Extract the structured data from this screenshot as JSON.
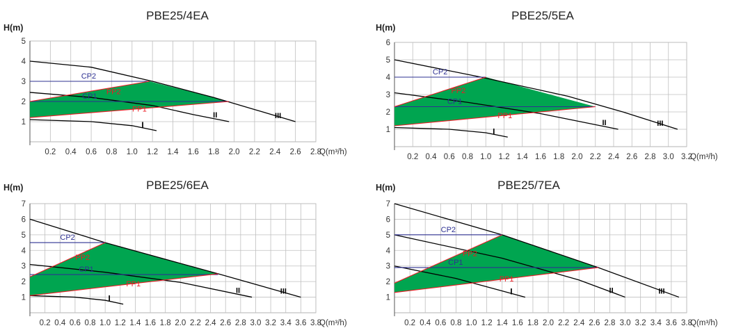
{
  "chart_data": [
    {
      "type": "line",
      "title": "PBE25/4EA",
      "ylabel": "H(m)",
      "xlabel": "Q(m³/h)",
      "ylim": [
        0,
        5
      ],
      "xlim": [
        0,
        2.8
      ],
      "yticks": [
        "1",
        "2",
        "3",
        "4",
        "5"
      ],
      "xticks": [
        "0.2",
        "0.4",
        "0.6",
        "0.8",
        "1.0",
        "1.2",
        "1.4",
        "1.6",
        "1.8",
        "2.0",
        "2.2",
        "2.4",
        "2.6",
        "2.8"
      ],
      "grid": true,
      "series": [
        {
          "name": "I",
          "x": [
            0,
            0.6,
            1.0,
            1.24
          ],
          "y": [
            1.1,
            1.0,
            0.8,
            0.55
          ]
        },
        {
          "name": "II",
          "x": [
            0,
            0.6,
            1.2,
            1.6,
            1.95
          ],
          "y": [
            2.45,
            2.2,
            1.8,
            1.35,
            1.0
          ]
        },
        {
          "name": "III",
          "x": [
            0,
            0.6,
            1.2,
            1.8,
            2.2,
            2.6
          ],
          "y": [
            4.0,
            3.7,
            3.0,
            2.2,
            1.6,
            1.0
          ]
        },
        {
          "name": "CP2",
          "x": [
            0,
            1.15
          ],
          "y": [
            3.0,
            3.0
          ]
        },
        {
          "name": "CP1",
          "x": [
            0,
            1.95
          ],
          "y": [
            2.0,
            2.0
          ]
        },
        {
          "name": "PP2",
          "x": [
            0,
            1.17
          ],
          "y": [
            2.0,
            3.0
          ]
        },
        {
          "name": "PP1",
          "x": [
            0,
            1.95
          ],
          "y": [
            1.2,
            2.0
          ]
        }
      ],
      "region": {
        "color": "#00A550",
        "x": [
          0,
          1.17,
          1.95,
          0
        ],
        "y": [
          2.0,
          3.0,
          2.0,
          1.2
        ]
      }
    },
    {
      "type": "line",
      "title": "PBE25/5EA",
      "ylabel": "H(m)",
      "xlabel": "Q(m³/h)",
      "ylim": [
        0,
        6
      ],
      "xlim": [
        0,
        3.2
      ],
      "yticks": [
        "1",
        "2",
        "3",
        "4",
        "5",
        "6"
      ],
      "xticks": [
        "0.2",
        "0.4",
        "0.6",
        "0.8",
        "1.0",
        "1.2",
        "1.4",
        "1.6",
        "1.8",
        "2.0",
        "2.2",
        "2.4",
        "2.6",
        "2.8",
        "3.0",
        "3.2"
      ],
      "grid": true,
      "series": [
        {
          "name": "I",
          "x": [
            0,
            0.6,
            1.0,
            1.24
          ],
          "y": [
            1.1,
            1.0,
            0.8,
            0.55
          ]
        },
        {
          "name": "II",
          "x": [
            0,
            0.8,
            1.6,
            2.45
          ],
          "y": [
            3.1,
            2.55,
            1.9,
            1.0
          ]
        },
        {
          "name": "III",
          "x": [
            0,
            0.95,
            1.9,
            2.5,
            3.1
          ],
          "y": [
            5.0,
            4.0,
            2.9,
            2.0,
            1.0
          ]
        },
        {
          "name": "CP2",
          "x": [
            0,
            1.0
          ],
          "y": [
            4.0,
            4.0
          ]
        },
        {
          "name": "CP1",
          "x": [
            0,
            2.2
          ],
          "y": [
            2.3,
            2.3
          ]
        },
        {
          "name": "PP2",
          "x": [
            0,
            1.0
          ],
          "y": [
            2.3,
            4.0
          ]
        },
        {
          "name": "PP1",
          "x": [
            0,
            2.2
          ],
          "y": [
            1.2,
            2.3
          ]
        }
      ],
      "region": {
        "color": "#00A550",
        "x": [
          0,
          1.0,
          2.2,
          0
        ],
        "y": [
          2.3,
          4.0,
          2.3,
          1.2
        ]
      }
    },
    {
      "type": "line",
      "title": "PBE25/6EA",
      "ylabel": "H(m)",
      "xlabel": "Q(m³/h)",
      "ylim": [
        0,
        7
      ],
      "xlim": [
        0,
        3.8
      ],
      "yticks": [
        "1",
        "2",
        "3",
        "4",
        "5",
        "6",
        "7"
      ],
      "xticks": [
        "0.2",
        "0.4",
        "0.6",
        "0.8",
        "1.0",
        "1.2",
        "1.4",
        "1.6",
        "1.8",
        "2.0",
        "2.2",
        "2.4",
        "2.6",
        "2.8",
        "3.0",
        "3.2",
        "3.4",
        "3.6",
        "3.8"
      ],
      "grid": true,
      "series": [
        {
          "name": "I",
          "x": [
            0,
            0.6,
            1.0,
            1.24
          ],
          "y": [
            1.1,
            1.0,
            0.8,
            0.55
          ]
        },
        {
          "name": "II",
          "x": [
            0,
            1.0,
            2.0,
            2.95
          ],
          "y": [
            3.1,
            2.6,
            1.95,
            1.0
          ]
        },
        {
          "name": "III",
          "x": [
            0,
            1.0,
            2.5,
            3.6
          ],
          "y": [
            6.0,
            4.5,
            2.5,
            1.0
          ]
        },
        {
          "name": "CP2",
          "x": [
            0,
            1.0
          ],
          "y": [
            4.5,
            4.5
          ]
        },
        {
          "name": "CP1",
          "x": [
            0,
            2.5
          ],
          "y": [
            2.45,
            2.45
          ]
        },
        {
          "name": "PP2",
          "x": [
            0,
            1.0
          ],
          "y": [
            2.3,
            4.5
          ]
        },
        {
          "name": "PP1",
          "x": [
            0,
            2.5
          ],
          "y": [
            1.1,
            2.5
          ]
        }
      ],
      "region": {
        "color": "#00A550",
        "x": [
          0,
          1.0,
          2.5,
          0
        ],
        "y": [
          2.3,
          4.5,
          2.5,
          1.1
        ]
      }
    },
    {
      "type": "line",
      "title": "PBE25/7EA",
      "ylabel": "H(m)",
      "xlabel": "Q(m³/h)",
      "ylim": [
        0,
        7
      ],
      "xlim": [
        0,
        3.8
      ],
      "yticks": [
        "1",
        "2",
        "3",
        "4",
        "5",
        "6",
        "7"
      ],
      "xticks": [
        "0.2",
        "0.4",
        "0.6",
        "0.8",
        "1.0",
        "1.2",
        "1.4",
        "1.6",
        "1.8",
        "2.0",
        "2.2",
        "2.4",
        "2.6",
        "2.8",
        "3.0",
        "3.2",
        "3.4",
        "3.6",
        "3.8"
      ],
      "grid": true,
      "series": [
        {
          "name": "I",
          "x": [
            0,
            0.8,
            1.7
          ],
          "y": [
            3.0,
            2.2,
            1.0
          ]
        },
        {
          "name": "II",
          "x": [
            0,
            1.4,
            2.4,
            3.0
          ],
          "y": [
            5.0,
            3.5,
            2.1,
            1.0
          ]
        },
        {
          "name": "III",
          "x": [
            0,
            1.4,
            2.65,
            3.7
          ],
          "y": [
            7.0,
            5.0,
            2.9,
            1.0
          ]
        },
        {
          "name": "CP2",
          "x": [
            0,
            1.4
          ],
          "y": [
            5.0,
            5.0
          ]
        },
        {
          "name": "CP1",
          "x": [
            0,
            2.65
          ],
          "y": [
            2.9,
            2.9
          ]
        },
        {
          "name": "PP2",
          "x": [
            0,
            1.4
          ],
          "y": [
            1.9,
            5.0
          ]
        },
        {
          "name": "PP1",
          "x": [
            0,
            2.65
          ],
          "y": [
            1.3,
            2.9
          ]
        }
      ],
      "region": {
        "color": "#00A550",
        "x": [
          0,
          1.4,
          2.65,
          0
        ],
        "y": [
          1.9,
          5.0,
          2.9,
          1.3
        ]
      }
    }
  ]
}
